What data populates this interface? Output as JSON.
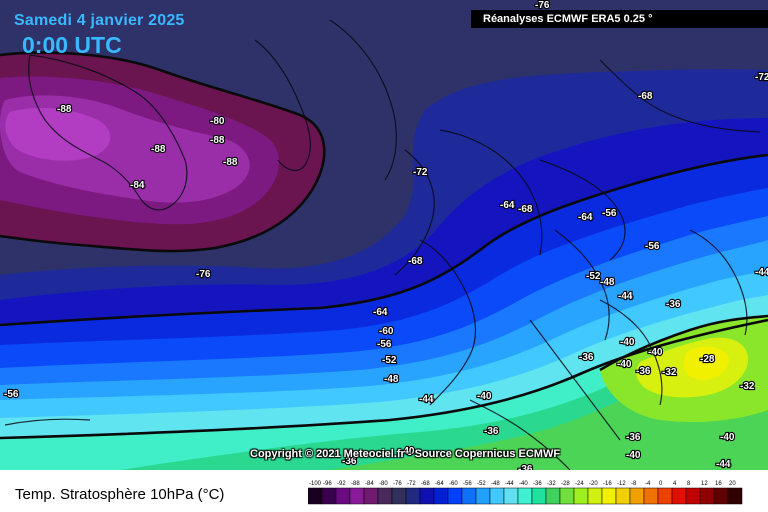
{
  "header": {
    "date": "Samedi 4 janvier 2025",
    "time": "0:00 UTC",
    "source": "Réanalyses ECMWF ERA5 0.25 °"
  },
  "copyright": "Copyright © 2021 Meteociel.fr - Source Copernicus ECMWF",
  "legend": {
    "title": "Temp. Stratosphère 10hPa (°C)",
    "ticks": [
      "-100",
      "-96",
      "-92",
      "-88",
      "-84",
      "-80",
      "-76",
      "-72",
      "-68",
      "-64",
      "-60",
      "-56",
      "-52",
      "-48",
      "-44",
      "-40",
      "-36",
      "-32",
      "-28",
      "-24",
      "-20",
      "-16",
      "-12",
      "-8",
      "-4",
      "0",
      "4",
      "8",
      "12",
      "16",
      "20"
    ],
    "colors": [
      "#1a0020",
      "#3a0050",
      "#6a0a80",
      "#8a1a9a",
      "#701a70",
      "#4a2a5a",
      "#30305a",
      "#202a80",
      "#1010b0",
      "#0020d8",
      "#0040ff",
      "#1070ff",
      "#20a0ff",
      "#40c8ff",
      "#60e0f0",
      "#40f0d0",
      "#20e0a0",
      "#40d060",
      "#70e040",
      "#a0f020",
      "#d0f010",
      "#f0f000",
      "#f0d000",
      "#f0a000",
      "#f07000",
      "#f04000",
      "#e01000",
      "#c00000",
      "#900000",
      "#600000",
      "#300000"
    ]
  },
  "map_labels": [
    {
      "text": "-76"
    },
    {
      "text": "-68"
    },
    {
      "text": "-72"
    },
    {
      "text": "-88"
    },
    {
      "text": "-80"
    },
    {
      "text": "-88"
    },
    {
      "text": "-88"
    },
    {
      "text": "-88"
    },
    {
      "text": "-84"
    },
    {
      "text": "-72"
    },
    {
      "text": "-64"
    },
    {
      "text": "-68"
    },
    {
      "text": "-64"
    },
    {
      "text": "-56"
    },
    {
      "text": "-56"
    },
    {
      "text": "-76"
    },
    {
      "text": "-68"
    },
    {
      "text": "-52"
    },
    {
      "text": "-48"
    },
    {
      "text": "-44"
    },
    {
      "text": "-44"
    },
    {
      "text": "-36"
    },
    {
      "text": "-64"
    },
    {
      "text": "-60"
    },
    {
      "text": "-56"
    },
    {
      "text": "-52"
    },
    {
      "text": "-48"
    },
    {
      "text": "-40"
    },
    {
      "text": "-40"
    },
    {
      "text": "-36"
    },
    {
      "text": "-28"
    },
    {
      "text": "-40"
    },
    {
      "text": "-36"
    },
    {
      "text": "-32"
    },
    {
      "text": "-32"
    },
    {
      "text": "-56"
    },
    {
      "text": "-44"
    },
    {
      "text": "-40"
    },
    {
      "text": "-36"
    },
    {
      "text": "-36"
    },
    {
      "text": "-40"
    },
    {
      "text": "-40"
    },
    {
      "text": "-44"
    },
    {
      "text": "-36"
    },
    {
      "text": "-40"
    },
    {
      "text": "-36"
    }
  ]
}
